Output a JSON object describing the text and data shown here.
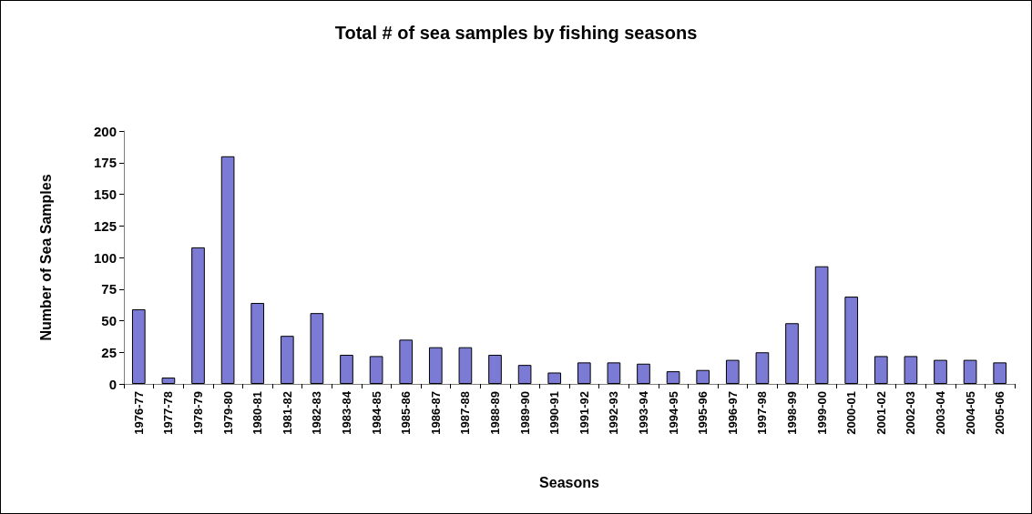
{
  "chart_data": {
    "type": "bar",
    "title": "Total # of sea samples by fishing seasons",
    "xlabel": "Seasons",
    "ylabel": "Number of Sea Samples",
    "categories": [
      "1976-77",
      "1977-78",
      "1978-79",
      "1979-80",
      "1980-81",
      "1981-82",
      "1982-83",
      "1983-84",
      "1984-85",
      "1985-86",
      "1986-87",
      "1987-88",
      "1988-89",
      "1989-90",
      "1990-91",
      "1991-92",
      "1992-93",
      "1993-94",
      "1994-95",
      "1995-96",
      "1996-97",
      "1997-98",
      "1998-99",
      "1999-00",
      "2000-01",
      "2001-02",
      "2002-03",
      "2003-04",
      "2004-05",
      "2005-06"
    ],
    "values": [
      59,
      5,
      108,
      180,
      64,
      38,
      56,
      23,
      22,
      35,
      29,
      29,
      23,
      15,
      9,
      17,
      17,
      16,
      10,
      11,
      19,
      25,
      48,
      93,
      69,
      22,
      22,
      19,
      19,
      17
    ],
    "color": "#7b7bd6",
    "ylim": [
      0,
      200
    ],
    "yticks": [
      0,
      25,
      50,
      75,
      100,
      125,
      150,
      175,
      200
    ],
    "grid": false
  }
}
